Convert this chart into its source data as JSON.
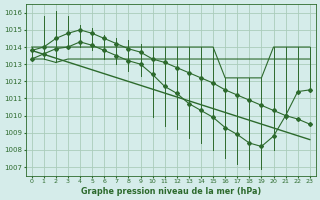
{
  "title": "Graphe pression niveau de la mer (hPa)",
  "bg_color": "#d5ecea",
  "grid_color": "#aaccbb",
  "line_color": "#2d6a2d",
  "text_color": "#2d6a2d",
  "hours": [
    0,
    1,
    2,
    3,
    4,
    5,
    6,
    7,
    8,
    9,
    10,
    11,
    12,
    13,
    14,
    15,
    16,
    17,
    18,
    19,
    20,
    21,
    22,
    23
  ],
  "ylim": [
    1006.5,
    1016.5
  ],
  "yticks": [
    1007,
    1008,
    1009,
    1010,
    1011,
    1012,
    1013,
    1014,
    1015,
    1016
  ],
  "bar_top": [
    1014.0,
    1015.8,
    1016.1,
    1015.8,
    1015.3,
    1015.1,
    1014.7,
    1014.5,
    1014.4,
    1014.2,
    1014.0,
    1014.0,
    1014.0,
    1014.0,
    1014.0,
    1014.0,
    1012.2,
    1012.2,
    1012.2,
    1012.2,
    1014.0,
    1014.0,
    1014.0,
    1014.0
  ],
  "bar_bot": [
    1013.3,
    1013.3,
    1013.1,
    1013.9,
    1014.0,
    1013.8,
    1013.3,
    1013.0,
    1012.6,
    1012.3,
    1009.9,
    1009.4,
    1009.2,
    1008.7,
    1008.4,
    1008.0,
    1007.5,
    1007.2,
    1006.9,
    1006.9,
    1008.0,
    1009.8,
    1011.4,
    1011.4
  ],
  "line_upper": [
    1014.0,
    1014.0,
    1014.0,
    1014.0,
    1014.0,
    1014.0,
    1014.0,
    1014.0,
    1014.0,
    1014.0,
    1014.0,
    1014.0,
    1014.0,
    1014.0,
    1014.0,
    1014.0,
    1012.2,
    1012.2,
    1012.2,
    1012.2,
    1014.0,
    1014.0,
    1014.0,
    1014.0
  ],
  "line_lower": [
    1013.3,
    1013.3,
    1013.1,
    1013.3,
    1013.3,
    1013.3,
    1013.3,
    1013.3,
    1013.3,
    1013.3,
    1013.3,
    1013.3,
    1013.3,
    1013.3,
    1013.3,
    1013.3,
    1013.3,
    1013.3,
    1013.3,
    1013.3,
    1013.3,
    1013.3,
    1013.3,
    1013.3
  ],
  "dot_line": [
    1013.8,
    1014.0,
    1014.5,
    1014.8,
    1015.0,
    1014.8,
    1014.5,
    1014.2,
    1013.9,
    1013.7,
    1013.3,
    1013.1,
    1012.8,
    1012.5,
    1012.2,
    1011.9,
    1011.5,
    1011.2,
    1010.9,
    1010.6,
    1010.3,
    1010.0,
    1009.8,
    1009.5
  ],
  "trend_line": [
    1013.8,
    1008.6
  ],
  "inner_top": [
    1014.0,
    1015.8,
    1016.1,
    1015.7,
    1015.2,
    1015.0,
    1014.7,
    1014.4,
    1014.2,
    1014.0,
    null,
    null,
    null,
    null,
    null,
    null,
    null,
    null,
    null,
    null,
    null,
    null,
    null,
    null
  ],
  "inner_bot": [
    1013.3,
    1013.4,
    1013.2,
    1014.0,
    1014.2,
    1014.0,
    1013.6,
    1013.2,
    1013.0,
    1012.7,
    null,
    null,
    null,
    null,
    null,
    null,
    null,
    null,
    null,
    null,
    null,
    null,
    null,
    null
  ],
  "mid_dots": [
    1013.3,
    1013.6,
    1013.9,
    1014.0,
    1014.3,
    1014.1,
    1013.8,
    1013.5,
    1013.2,
    1013.0,
    1012.4,
    1011.7,
    1011.3,
    1010.7,
    1010.3,
    1009.9,
    1009.3,
    1008.9,
    1008.4,
    1008.2,
    1008.8,
    1010.0,
    1011.4,
    1011.5
  ]
}
